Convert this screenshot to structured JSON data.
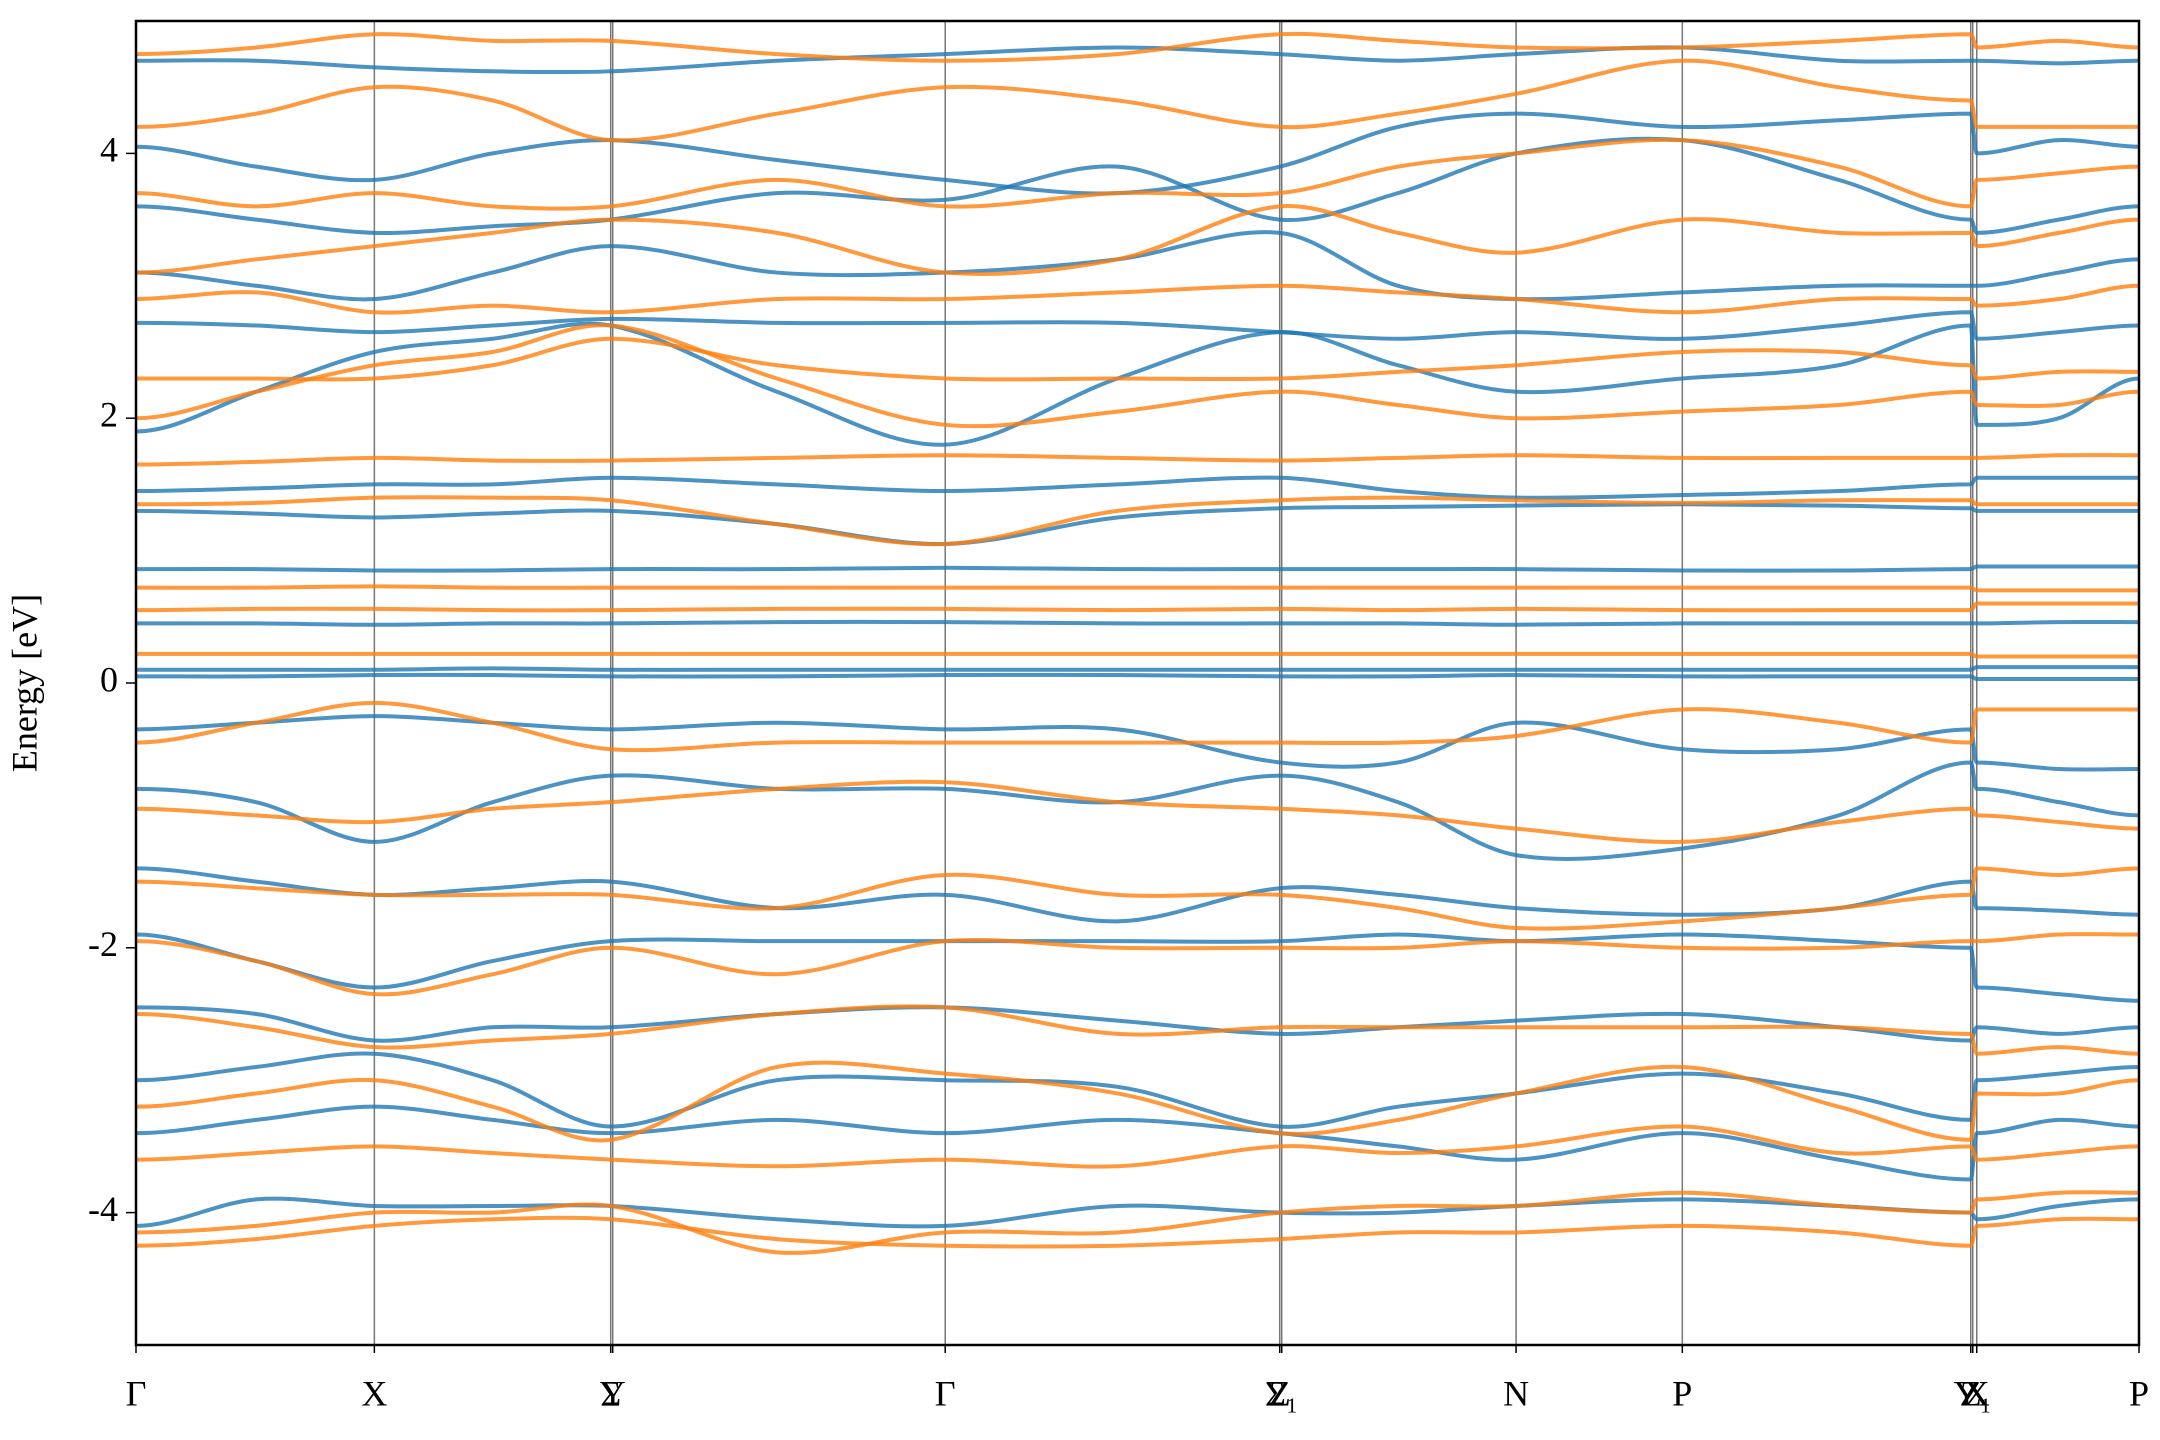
{
  "chart_data": {
    "type": "line",
    "ylabel": "Energy [eV]",
    "xlim": [
      0,
      1
    ],
    "ylim": [
      -5,
      5
    ],
    "yticks": [
      -4,
      -2,
      0,
      2,
      4
    ],
    "xticks": [
      {
        "value": 0,
        "label": "Γ"
      },
      {
        "value": 0.119,
        "label": "X"
      },
      {
        "value": 0.237,
        "label": "Σ"
      },
      {
        "value": 0.238,
        "label": "Y"
      },
      {
        "value": 0.404,
        "label": "Γ"
      },
      {
        "value": 0.571,
        "label": "Z"
      },
      {
        "value": 0.572,
        "label": "Σ₁"
      },
      {
        "value": 0.689,
        "label": "N"
      },
      {
        "value": 0.772,
        "label": "P"
      },
      {
        "value": 0.916,
        "label": "Z"
      },
      {
        "value": 0.917,
        "label": "Y₁"
      },
      {
        "value": 0.919,
        "label": "X"
      },
      {
        "value": 1.0,
        "label": "P"
      }
    ],
    "x": [
      0,
      0.06,
      0.119,
      0.178,
      0.237,
      0.32,
      0.404,
      0.49,
      0.571,
      0.63,
      0.689,
      0.772,
      0.85,
      0.916,
      0.919,
      0.96,
      1.0
    ],
    "series": [
      {
        "color": "#1f77b4",
        "values": [
          0.05,
          0.05,
          0.06,
          0.06,
          0.05,
          0.05,
          0.06,
          0.06,
          0.05,
          0.05,
          0.06,
          0.05,
          0.05,
          0.05,
          0.03,
          0.03,
          0.03
        ]
      },
      {
        "color": "#1f77b4",
        "values": [
          0.1,
          0.1,
          0.1,
          0.11,
          0.1,
          0.1,
          0.1,
          0.1,
          0.1,
          0.1,
          0.1,
          0.1,
          0.1,
          0.1,
          0.12,
          0.12,
          0.12
        ]
      },
      {
        "color": "#1f77b4",
        "values": [
          0.45,
          0.45,
          0.44,
          0.45,
          0.45,
          0.46,
          0.46,
          0.45,
          0.45,
          0.45,
          0.44,
          0.45,
          0.45,
          0.45,
          0.45,
          0.46,
          0.46
        ]
      },
      {
        "color": "#1f77b4",
        "values": [
          0.86,
          0.86,
          0.85,
          0.85,
          0.86,
          0.86,
          0.87,
          0.86,
          0.86,
          0.86,
          0.86,
          0.85,
          0.85,
          0.86,
          0.88,
          0.88,
          0.88
        ]
      },
      {
        "color": "#1f77b4",
        "values": [
          1.3,
          1.28,
          1.25,
          1.28,
          1.3,
          1.2,
          1.05,
          1.25,
          1.32,
          1.33,
          1.34,
          1.35,
          1.34,
          1.32,
          1.3,
          1.3,
          1.3
        ]
      },
      {
        "color": "#1f77b4",
        "values": [
          1.45,
          1.47,
          1.5,
          1.5,
          1.55,
          1.5,
          1.45,
          1.5,
          1.55,
          1.45,
          1.4,
          1.42,
          1.45,
          1.5,
          1.55,
          1.55,
          1.55
        ]
      },
      {
        "color": "#1f77b4",
        "values": [
          1.9,
          2.2,
          2.5,
          2.6,
          2.7,
          2.2,
          1.8,
          2.3,
          2.65,
          2.4,
          2.2,
          2.3,
          2.4,
          2.7,
          1.95,
          2.0,
          2.3
        ]
      },
      {
        "color": "#1f77b4",
        "values": [
          2.72,
          2.7,
          2.65,
          2.7,
          2.75,
          2.72,
          2.72,
          2.72,
          2.65,
          2.6,
          2.65,
          2.6,
          2.7,
          2.8,
          2.6,
          2.65,
          2.7
        ]
      },
      {
        "color": "#1f77b4",
        "values": [
          3.1,
          3.0,
          2.9,
          3.1,
          3.3,
          3.1,
          3.1,
          3.2,
          3.4,
          3.0,
          2.9,
          2.95,
          3.0,
          3.0,
          3.0,
          3.1,
          3.2
        ]
      },
      {
        "color": "#1f77b4",
        "values": [
          3.6,
          3.5,
          3.4,
          3.45,
          3.5,
          3.7,
          3.65,
          3.9,
          3.5,
          3.7,
          4.0,
          4.1,
          3.8,
          3.5,
          3.4,
          3.5,
          3.6
        ]
      },
      {
        "color": "#1f77b4",
        "values": [
          4.05,
          3.9,
          3.8,
          4.0,
          4.1,
          3.95,
          3.8,
          3.7,
          3.9,
          4.2,
          4.3,
          4.2,
          4.25,
          4.3,
          4.0,
          4.1,
          4.05
        ]
      },
      {
        "color": "#1f77b4",
        "values": [
          4.7,
          4.7,
          4.65,
          4.62,
          4.62,
          4.7,
          4.75,
          4.8,
          4.75,
          4.7,
          4.75,
          4.8,
          4.7,
          4.7,
          4.7,
          4.68,
          4.7
        ]
      },
      {
        "color": "#1f77b4",
        "values": [
          -0.35,
          -0.3,
          -0.25,
          -0.3,
          -0.35,
          -0.3,
          -0.35,
          -0.35,
          -0.6,
          -0.6,
          -0.3,
          -0.5,
          -0.5,
          -0.35,
          -0.6,
          -0.65,
          -0.65
        ]
      },
      {
        "color": "#1f77b4",
        "values": [
          -0.8,
          -0.9,
          -1.2,
          -0.9,
          -0.7,
          -0.8,
          -0.8,
          -0.9,
          -0.7,
          -0.9,
          -1.3,
          -1.25,
          -1.0,
          -0.6,
          -0.8,
          -0.9,
          -1.0
        ]
      },
      {
        "color": "#1f77b4",
        "values": [
          -1.4,
          -1.5,
          -1.6,
          -1.55,
          -1.5,
          -1.7,
          -1.6,
          -1.8,
          -1.55,
          -1.6,
          -1.7,
          -1.75,
          -1.7,
          -1.5,
          -1.7,
          -1.72,
          -1.75
        ]
      },
      {
        "color": "#1f77b4",
        "values": [
          -1.9,
          -2.1,
          -2.3,
          -2.1,
          -1.95,
          -1.95,
          -1.95,
          -1.95,
          -1.95,
          -1.9,
          -1.95,
          -1.9,
          -1.95,
          -2.0,
          -2.3,
          -2.35,
          -2.4
        ]
      },
      {
        "color": "#1f77b4",
        "values": [
          -2.45,
          -2.5,
          -2.7,
          -2.6,
          -2.6,
          -2.5,
          -2.45,
          -2.55,
          -2.65,
          -2.6,
          -2.55,
          -2.5,
          -2.6,
          -2.7,
          -2.6,
          -2.65,
          -2.6
        ]
      },
      {
        "color": "#1f77b4",
        "values": [
          -3.0,
          -2.9,
          -2.8,
          -3.0,
          -3.35,
          -3.0,
          -3.0,
          -3.05,
          -3.35,
          -3.2,
          -3.1,
          -2.95,
          -3.1,
          -3.3,
          -3.0,
          -2.95,
          -2.9
        ]
      },
      {
        "color": "#1f77b4",
        "values": [
          -3.4,
          -3.3,
          -3.2,
          -3.3,
          -3.4,
          -3.3,
          -3.4,
          -3.3,
          -3.4,
          -3.5,
          -3.6,
          -3.4,
          -3.6,
          -3.75,
          -3.4,
          -3.3,
          -3.35
        ]
      },
      {
        "color": "#1f77b4",
        "values": [
          -4.1,
          -3.9,
          -3.95,
          -3.95,
          -3.95,
          -4.05,
          -4.1,
          -3.95,
          -4.0,
          -4.0,
          -3.95,
          -3.9,
          -3.95,
          -4.0,
          -4.05,
          -3.95,
          -3.9
        ]
      },
      {
        "color": "#ff7f0e",
        "values": [
          0.22,
          0.22,
          0.22,
          0.22,
          0.22,
          0.22,
          0.22,
          0.22,
          0.22,
          0.22,
          0.22,
          0.22,
          0.22,
          0.22,
          0.2,
          0.2,
          0.2
        ]
      },
      {
        "color": "#ff7f0e",
        "values": [
          0.55,
          0.56,
          0.56,
          0.55,
          0.55,
          0.56,
          0.56,
          0.55,
          0.56,
          0.55,
          0.56,
          0.55,
          0.55,
          0.55,
          0.6,
          0.6,
          0.6
        ]
      },
      {
        "color": "#ff7f0e",
        "values": [
          0.72,
          0.72,
          0.73,
          0.72,
          0.72,
          0.72,
          0.72,
          0.72,
          0.72,
          0.72,
          0.72,
          0.72,
          0.72,
          0.72,
          0.7,
          0.7,
          0.7
        ]
      },
      {
        "color": "#ff7f0e",
        "values": [
          1.35,
          1.36,
          1.4,
          1.4,
          1.38,
          1.2,
          1.05,
          1.3,
          1.38,
          1.4,
          1.38,
          1.36,
          1.38,
          1.38,
          1.35,
          1.35,
          1.35
        ]
      },
      {
        "color": "#ff7f0e",
        "values": [
          1.65,
          1.67,
          1.7,
          1.68,
          1.68,
          1.7,
          1.72,
          1.7,
          1.68,
          1.7,
          1.72,
          1.7,
          1.7,
          1.7,
          1.7,
          1.72,
          1.72
        ]
      },
      {
        "color": "#ff7f0e",
        "values": [
          2.0,
          2.2,
          2.4,
          2.5,
          2.7,
          2.3,
          1.95,
          2.05,
          2.2,
          2.1,
          2.0,
          2.05,
          2.1,
          2.2,
          2.1,
          2.1,
          2.2
        ]
      },
      {
        "color": "#ff7f0e",
        "values": [
          2.3,
          2.3,
          2.3,
          2.4,
          2.6,
          2.4,
          2.3,
          2.3,
          2.3,
          2.35,
          2.4,
          2.5,
          2.5,
          2.4,
          2.3,
          2.35,
          2.35
        ]
      },
      {
        "color": "#ff7f0e",
        "values": [
          2.9,
          2.95,
          2.8,
          2.85,
          2.8,
          2.9,
          2.9,
          2.95,
          3.0,
          2.95,
          2.9,
          2.8,
          2.9,
          2.9,
          2.85,
          2.9,
          3.0
        ]
      },
      {
        "color": "#ff7f0e",
        "values": [
          3.1,
          3.2,
          3.3,
          3.4,
          3.5,
          3.4,
          3.1,
          3.2,
          3.6,
          3.4,
          3.25,
          3.5,
          3.4,
          3.4,
          3.3,
          3.4,
          3.5
        ]
      },
      {
        "color": "#ff7f0e",
        "values": [
          3.7,
          3.6,
          3.7,
          3.6,
          3.6,
          3.8,
          3.6,
          3.7,
          3.7,
          3.9,
          4.0,
          4.1,
          3.9,
          3.6,
          3.8,
          3.85,
          3.9
        ]
      },
      {
        "color": "#ff7f0e",
        "values": [
          4.2,
          4.3,
          4.5,
          4.4,
          4.1,
          4.3,
          4.5,
          4.4,
          4.2,
          4.3,
          4.45,
          4.7,
          4.5,
          4.4,
          4.2,
          4.2,
          4.2
        ]
      },
      {
        "color": "#ff7f0e",
        "values": [
          4.75,
          4.8,
          4.9,
          4.85,
          4.85,
          4.75,
          4.7,
          4.75,
          4.9,
          4.85,
          4.8,
          4.8,
          4.85,
          4.9,
          4.8,
          4.85,
          4.8
        ]
      },
      {
        "color": "#ff7f0e",
        "values": [
          -0.45,
          -0.3,
          -0.15,
          -0.3,
          -0.5,
          -0.45,
          -0.45,
          -0.45,
          -0.45,
          -0.45,
          -0.4,
          -0.2,
          -0.3,
          -0.45,
          -0.2,
          -0.2,
          -0.2
        ]
      },
      {
        "color": "#ff7f0e",
        "values": [
          -0.95,
          -1.0,
          -1.05,
          -0.95,
          -0.9,
          -0.8,
          -0.75,
          -0.9,
          -0.95,
          -1.0,
          -1.1,
          -1.2,
          -1.05,
          -0.95,
          -1.0,
          -1.05,
          -1.1
        ]
      },
      {
        "color": "#ff7f0e",
        "values": [
          -1.5,
          -1.55,
          -1.6,
          -1.6,
          -1.6,
          -1.7,
          -1.45,
          -1.6,
          -1.6,
          -1.7,
          -1.85,
          -1.8,
          -1.7,
          -1.6,
          -1.4,
          -1.45,
          -1.4
        ]
      },
      {
        "color": "#ff7f0e",
        "values": [
          -1.95,
          -2.1,
          -2.35,
          -2.2,
          -2.0,
          -2.2,
          -1.95,
          -2.0,
          -2.0,
          -2.0,
          -1.95,
          -2.0,
          -2.0,
          -1.95,
          -1.95,
          -1.9,
          -1.9
        ]
      },
      {
        "color": "#ff7f0e",
        "values": [
          -2.5,
          -2.6,
          -2.75,
          -2.7,
          -2.65,
          -2.5,
          -2.45,
          -2.65,
          -2.6,
          -2.6,
          -2.6,
          -2.6,
          -2.6,
          -2.65,
          -2.8,
          -2.75,
          -2.8
        ]
      },
      {
        "color": "#ff7f0e",
        "values": [
          -3.2,
          -3.1,
          -3.0,
          -3.2,
          -3.45,
          -2.9,
          -2.95,
          -3.1,
          -3.4,
          -3.3,
          -3.1,
          -2.9,
          -3.2,
          -3.45,
          -3.1,
          -3.1,
          -3.0
        ]
      },
      {
        "color": "#ff7f0e",
        "values": [
          -3.6,
          -3.55,
          -3.5,
          -3.55,
          -3.6,
          -3.65,
          -3.6,
          -3.65,
          -3.5,
          -3.55,
          -3.5,
          -3.35,
          -3.55,
          -3.5,
          -3.6,
          -3.55,
          -3.5
        ]
      },
      {
        "color": "#ff7f0e",
        "values": [
          -4.15,
          -4.1,
          -4.0,
          -4.0,
          -3.95,
          -4.3,
          -4.15,
          -4.15,
          -4.0,
          -3.95,
          -3.95,
          -3.85,
          -3.95,
          -4.0,
          -3.9,
          -3.85,
          -3.85
        ]
      },
      {
        "color": "#ff7f0e",
        "values": [
          -4.25,
          -4.2,
          -4.1,
          -4.05,
          -4.05,
          -4.2,
          -4.25,
          -4.25,
          -4.2,
          -4.15,
          -4.15,
          -4.1,
          -4.15,
          -4.25,
          -4.1,
          -4.05,
          -4.05
        ]
      }
    ]
  }
}
